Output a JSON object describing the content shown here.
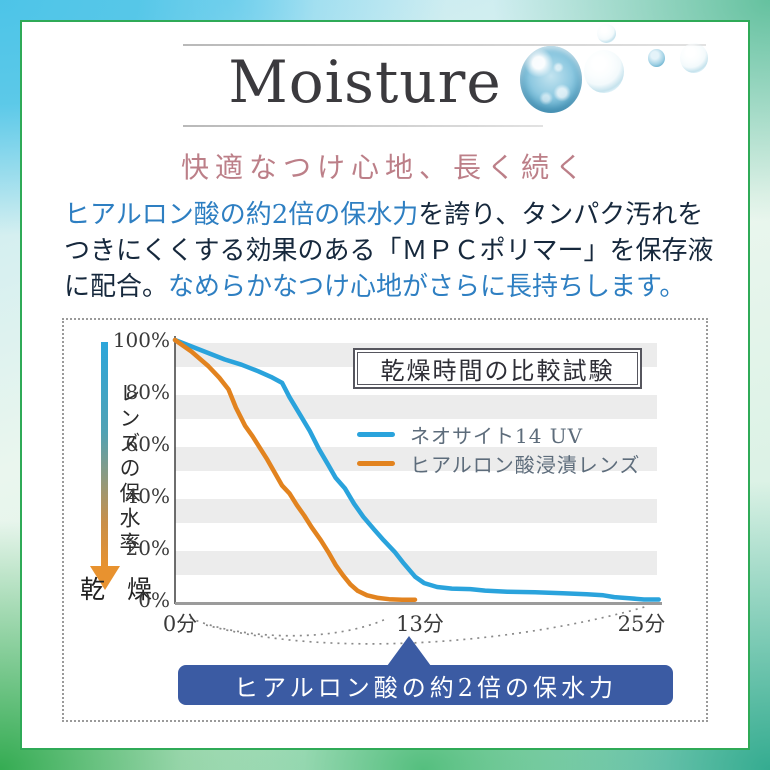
{
  "title": {
    "text": "Moisture"
  },
  "headline": {
    "text": "快適なつけ心地、長く続く",
    "color": "#bc7f88"
  },
  "body": {
    "color_blue": "#2e7fc2",
    "color_dark": "#16283c",
    "line1_blue": "ヒアルロン酸の約2倍の保水力",
    "line1_dark": "を誇り、タンパク汚れを",
    "line2_dark": "つきにくくする効果のある「ＭＰＣポリマー」を保存液",
    "line3_dark": "に配合。",
    "line3_blue": "なめらかなつけ心地がさらに長持ちします。"
  },
  "chart": {
    "box_title": "乾燥時間の比較試験",
    "y_axis_label": "レンズの保水率",
    "dry_label": "乾 燥",
    "y_tick_labels": [
      "100%",
      "80%",
      "60%",
      "40%",
      "20%",
      "0%"
    ],
    "x_tick_labels": [
      "0分",
      "13分",
      "25分"
    ],
    "legend": [
      {
        "label": "ネオサイト14 UV",
        "color": "#2aa3dc"
      },
      {
        "label": "ヒアルロン酸浸漬レンズ",
        "color": "#e2831f"
      }
    ],
    "banner": {
      "text": "ヒアルロン酸の約2倍の保水力",
      "bg": "#3b5ba3"
    }
  },
  "chart_data": {
    "type": "line",
    "title": "乾燥時間の比較試験",
    "ylabel": "レンズの保水率",
    "x_unit": "分",
    "xlim": [
      0,
      26.3
    ],
    "ylim": [
      0,
      100
    ],
    "x_ticks_minutes": [
      0,
      13,
      25
    ],
    "grid_stripes": "horizontal gray bands every 20%",
    "legend_position": "center-right",
    "annotation": "ヒアルロン酸の約2倍の保水力",
    "series": [
      {
        "name": "ネオサイト14 UV",
        "color": "#2aa3dc",
        "points": [
          [
            0,
            100
          ],
          [
            0.9,
            97.5
          ],
          [
            1.8,
            95
          ],
          [
            2.7,
            92.5
          ],
          [
            3.6,
            90.5
          ],
          [
            4.5,
            88
          ],
          [
            5.2,
            85.8
          ],
          [
            5.8,
            83.5
          ],
          [
            6.2,
            78
          ],
          [
            6.8,
            71
          ],
          [
            7.3,
            65
          ],
          [
            7.8,
            58
          ],
          [
            8.3,
            52
          ],
          [
            8.7,
            47
          ],
          [
            9.2,
            43
          ],
          [
            9.7,
            37
          ],
          [
            10.2,
            32
          ],
          [
            10.8,
            27
          ],
          [
            11.3,
            23
          ],
          [
            11.9,
            18.5
          ],
          [
            12.4,
            14
          ],
          [
            13,
            9
          ],
          [
            13.5,
            6.5
          ],
          [
            14.2,
            5
          ],
          [
            15,
            4.4
          ],
          [
            16,
            4.2
          ],
          [
            16.8,
            3.6
          ],
          [
            18,
            3.2
          ],
          [
            19.5,
            3
          ],
          [
            21,
            2.6
          ],
          [
            22.3,
            2.2
          ],
          [
            23.2,
            1.8
          ],
          [
            23.8,
            1.1
          ],
          [
            24.6,
            0.7
          ],
          [
            25.4,
            0.2
          ],
          [
            26.2,
            0.2
          ]
        ]
      },
      {
        "name": "ヒアルロン酸浸漬レンズ",
        "color": "#e2831f",
        "points": [
          [
            0,
            100
          ],
          [
            0.9,
            95.5
          ],
          [
            1.8,
            90
          ],
          [
            2.4,
            85.5
          ],
          [
            2.9,
            81
          ],
          [
            3.3,
            74
          ],
          [
            3.8,
            67
          ],
          [
            4.2,
            63
          ],
          [
            4.6,
            58.5
          ],
          [
            5,
            54
          ],
          [
            5.4,
            49
          ],
          [
            5.8,
            44
          ],
          [
            6.2,
            41
          ],
          [
            6.6,
            36.5
          ],
          [
            7,
            32.5
          ],
          [
            7.4,
            28
          ],
          [
            7.9,
            23
          ],
          [
            8.3,
            18.5
          ],
          [
            8.7,
            13.5
          ],
          [
            9.1,
            9.5
          ],
          [
            9.5,
            6
          ],
          [
            9.9,
            3.5
          ],
          [
            10.4,
            1.8
          ],
          [
            11,
            0.8
          ],
          [
            11.6,
            0.3
          ],
          [
            12.3,
            0.1
          ],
          [
            13,
            0.1
          ]
        ]
      }
    ]
  }
}
